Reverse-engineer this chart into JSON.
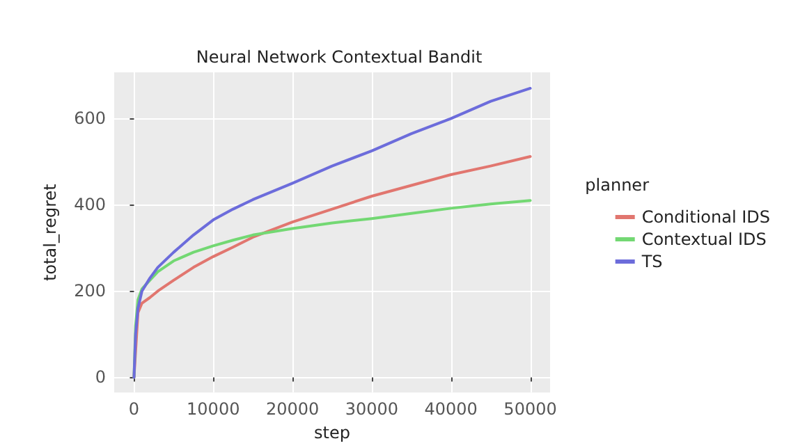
{
  "chart_data": {
    "type": "line",
    "title": "Neural Network Contextual Bandit",
    "xlabel": "step",
    "ylabel": "total_regret",
    "legend_title": "planner",
    "x": [
      0,
      200,
      500,
      1000,
      2000,
      3000,
      5000,
      7500,
      10000,
      12500,
      15000,
      20000,
      25000,
      30000,
      35000,
      40000,
      45000,
      50000
    ],
    "series": [
      {
        "name": "Conditional IDS",
        "color": "#e1766f",
        "x": [
          0,
          500,
          1000,
          2000,
          3000,
          5000,
          7500,
          10000,
          12500,
          15000,
          20000,
          25000,
          30000,
          35000,
          40000,
          45000,
          50000
        ],
        "values": [
          0,
          150,
          172,
          185,
          200,
          225,
          255,
          280,
          302,
          325,
          360,
          390,
          420,
          445,
          470,
          490,
          512
        ]
      },
      {
        "name": "Contextual IDS",
        "color": "#73d873",
        "values": [
          0,
          120,
          180,
          205,
          225,
          245,
          270,
          290,
          305,
          318,
          330,
          345,
          358,
          368,
          380,
          392,
          402,
          410
        ]
      },
      {
        "name": "TS",
        "color": "#6c6cdb",
        "values": [
          0,
          100,
          160,
          200,
          230,
          255,
          290,
          330,
          365,
          390,
          412,
          450,
          490,
          525,
          565,
          600,
          640,
          670
        ]
      }
    ],
    "xlim": [
      -2500,
      52500
    ],
    "xticks": [
      0,
      10000,
      20000,
      30000,
      40000,
      50000
    ],
    "ylim": [
      -35,
      707
    ],
    "yticks": [
      0,
      200,
      400,
      600
    ],
    "grid": true,
    "legend": "right",
    "marker": "none",
    "line_style": "solid"
  }
}
